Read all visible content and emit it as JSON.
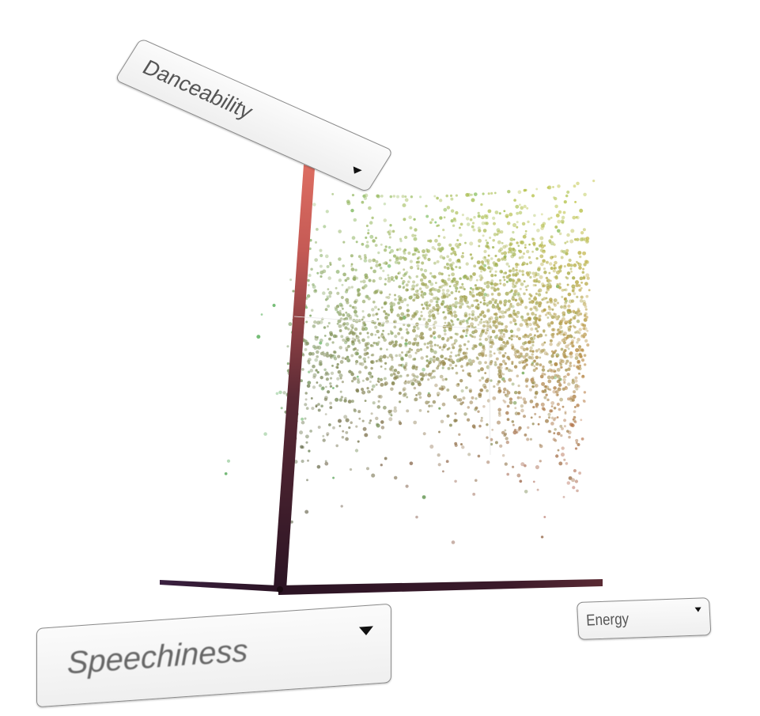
{
  "axis_selectors": {
    "y": {
      "selected": "Danceability"
    },
    "x": {
      "selected": "Energy"
    },
    "z": {
      "selected": "Speechiness"
    }
  },
  "chart_data": {
    "type": "scatter",
    "dimensions": 3,
    "xlabel": "Energy",
    "ylabel": "Danceability",
    "zlabel": "Speechiness",
    "xlim": [
      0,
      1
    ],
    "ylim": [
      0,
      1
    ],
    "zlim": [
      0,
      1
    ],
    "grid": false,
    "legend": "none",
    "colors": {
      "axis_y_top": "#d9685e",
      "axis_base": "#2b1424",
      "low_energy_high_dance": "#8fb56a",
      "high_energy_high_dance": "#c4c33a",
      "high_energy_low_dance": "#b4584a",
      "low_energy_low_dance": "#5e5848",
      "high_speechiness": "#3fb04a"
    }
  }
}
